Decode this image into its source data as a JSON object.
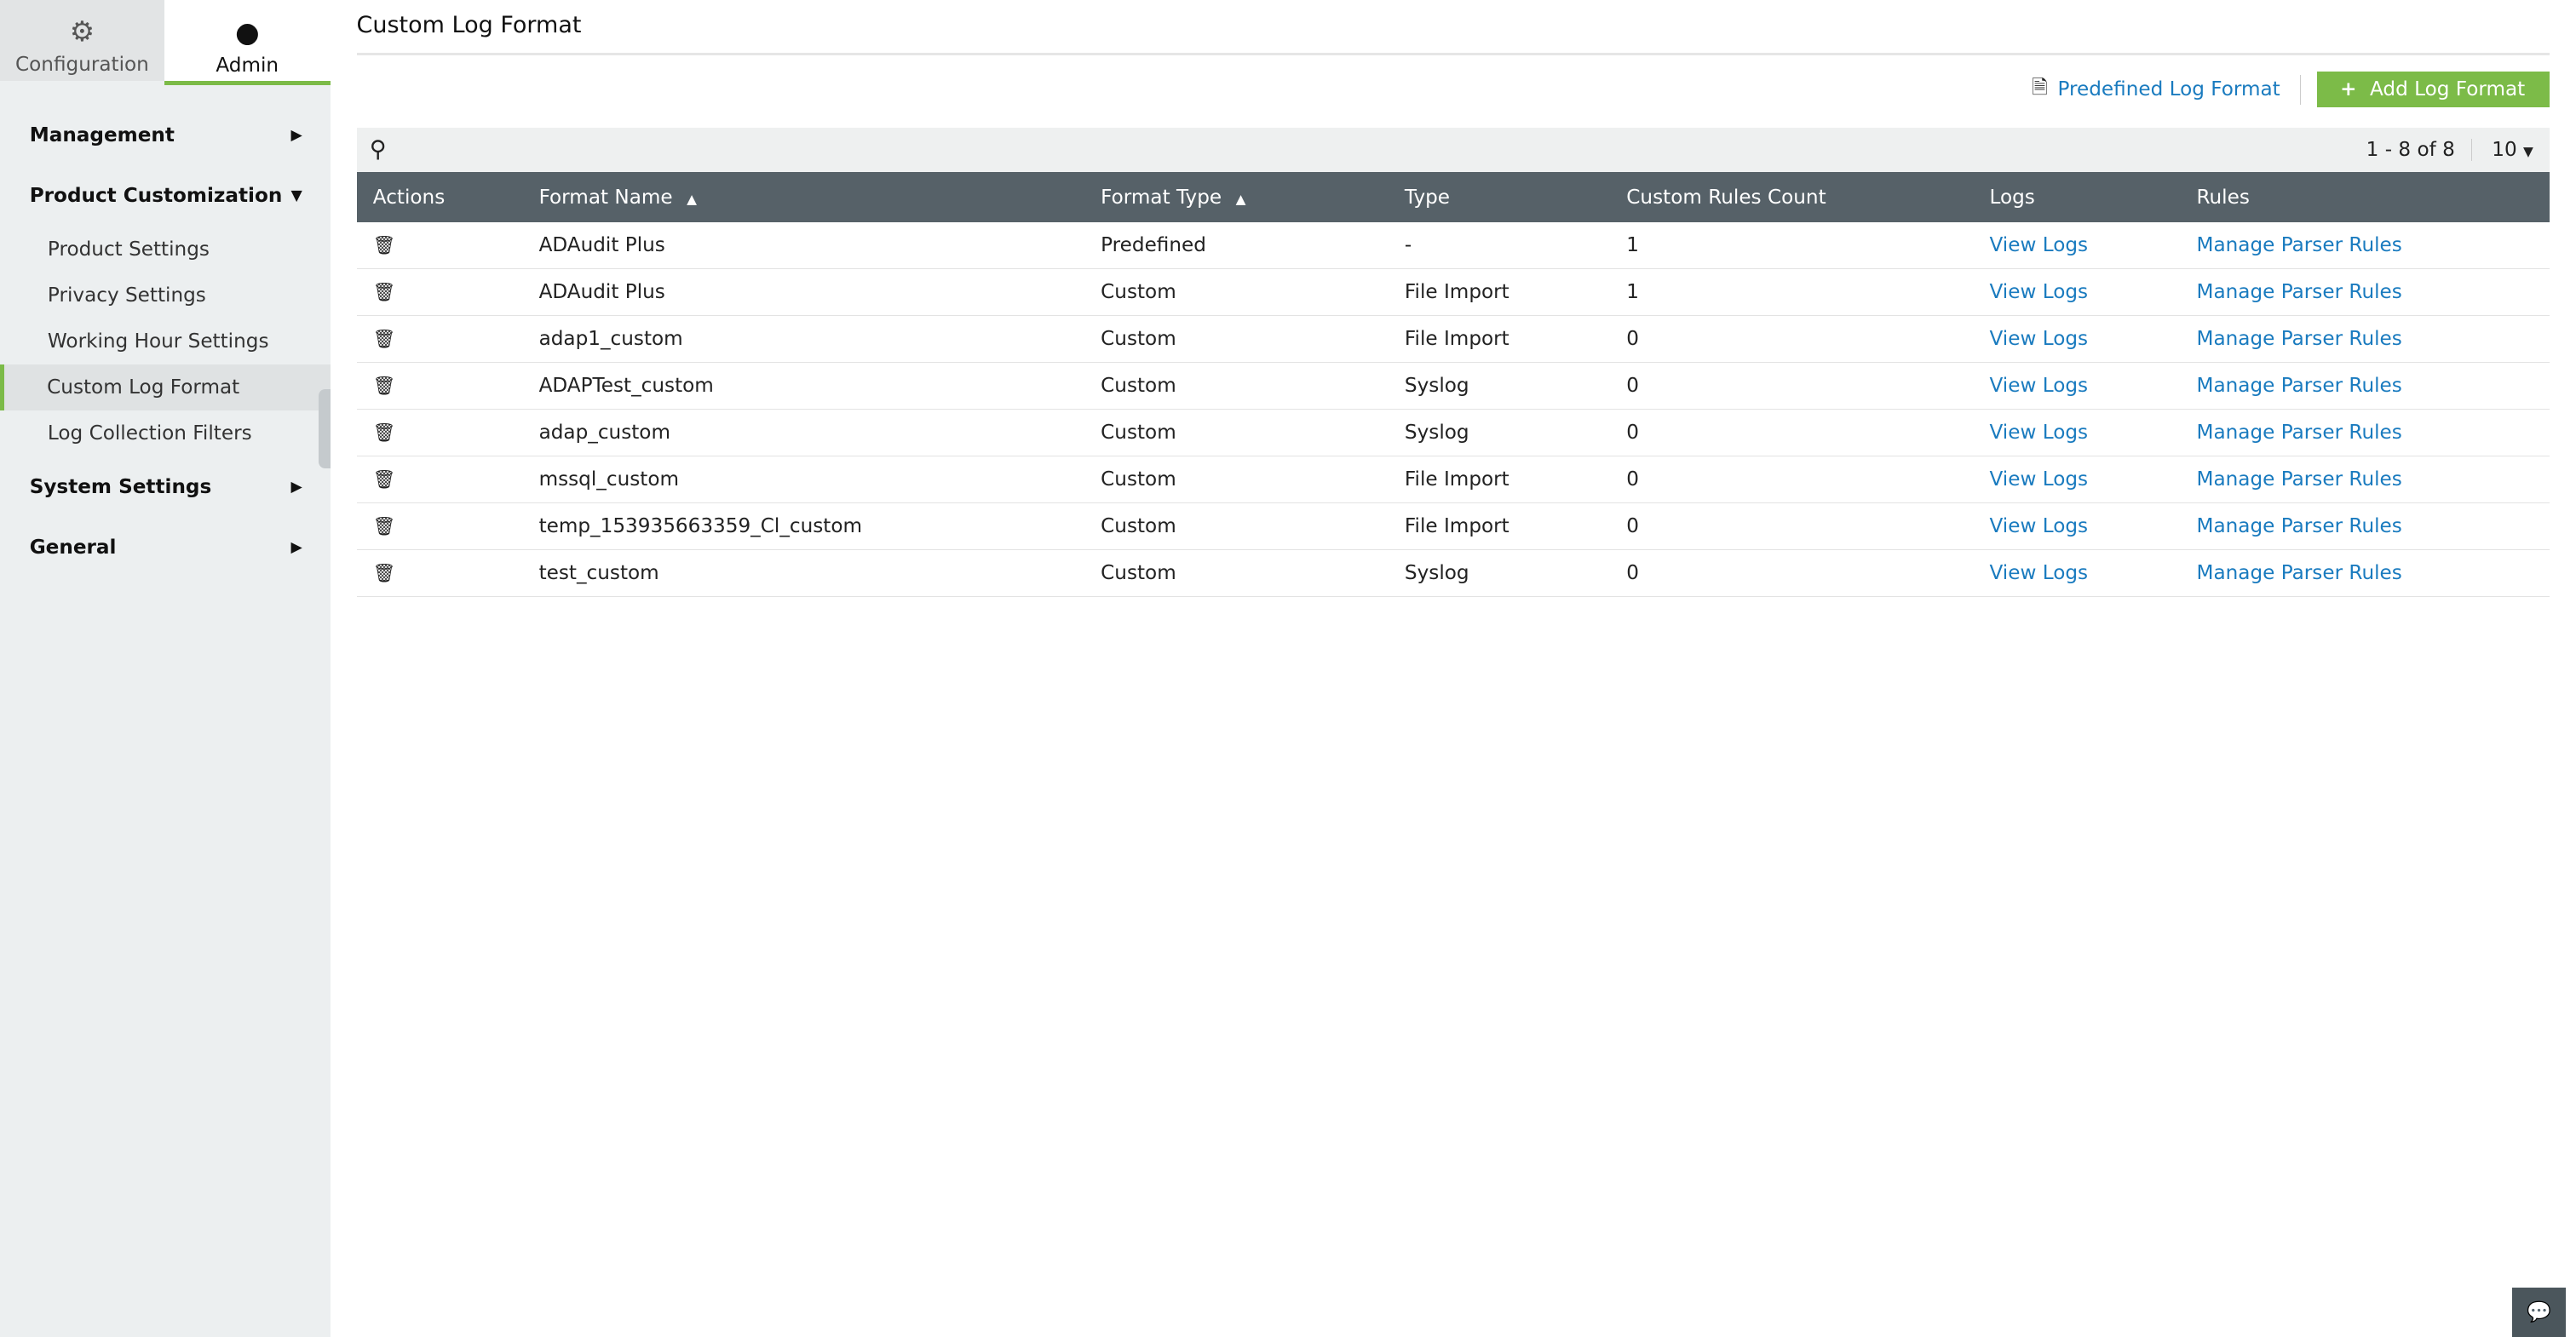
{
  "sidebar": {
    "tabs": [
      {
        "label": "Configuration",
        "icon": "gear-icon"
      },
      {
        "label": "Admin",
        "icon": "user-icon"
      }
    ],
    "sections": [
      {
        "label": "Management",
        "expanded": false
      },
      {
        "label": "Product Customization",
        "expanded": true,
        "items": [
          "Product Settings",
          "Privacy Settings",
          "Working Hour Settings",
          "Custom Log Format",
          "Log Collection Filters"
        ],
        "active": "Custom Log Format"
      },
      {
        "label": "System Settings",
        "expanded": false
      },
      {
        "label": "General",
        "expanded": false
      }
    ]
  },
  "page": {
    "title": "Custom Log Format",
    "predefined_link": "Predefined Log Format",
    "add_button": "Add Log Format"
  },
  "pager": {
    "range": "1 - 8 of 8",
    "page_size": "10"
  },
  "table": {
    "columns": [
      "Actions",
      "Format Name",
      "Format Type",
      "Type",
      "Custom Rules Count",
      "Logs",
      "Rules"
    ],
    "rows": [
      [
        "ADAudit Plus",
        "Predefined",
        "-",
        "1",
        "View Logs",
        "Manage Parser Rules"
      ],
      [
        "ADAudit Plus",
        "Custom",
        "File Import",
        "1",
        "View Logs",
        "Manage Parser Rules"
      ],
      [
        "adap1_custom",
        "Custom",
        "File Import",
        "0",
        "View Logs",
        "Manage Parser Rules"
      ],
      [
        "ADAPTest_custom",
        "Custom",
        "Syslog",
        "0",
        "View Logs",
        "Manage Parser Rules"
      ],
      [
        "adap_custom",
        "Custom",
        "Syslog",
        "0",
        "View Logs",
        "Manage Parser Rules"
      ],
      [
        "mssql_custom",
        "Custom",
        "File Import",
        "0",
        "View Logs",
        "Manage Parser Rules"
      ],
      [
        "temp_153935663359_Cl_custom",
        "Custom",
        "File Import",
        "0",
        "View Logs",
        "Manage Parser Rules"
      ],
      [
        "test_custom",
        "Custom",
        "Syslog",
        "0",
        "View Logs",
        "Manage Parser Rules"
      ]
    ]
  },
  "colors": {
    "accent": "#7cbb48",
    "link": "#1a7bbf",
    "header": "#566168"
  }
}
